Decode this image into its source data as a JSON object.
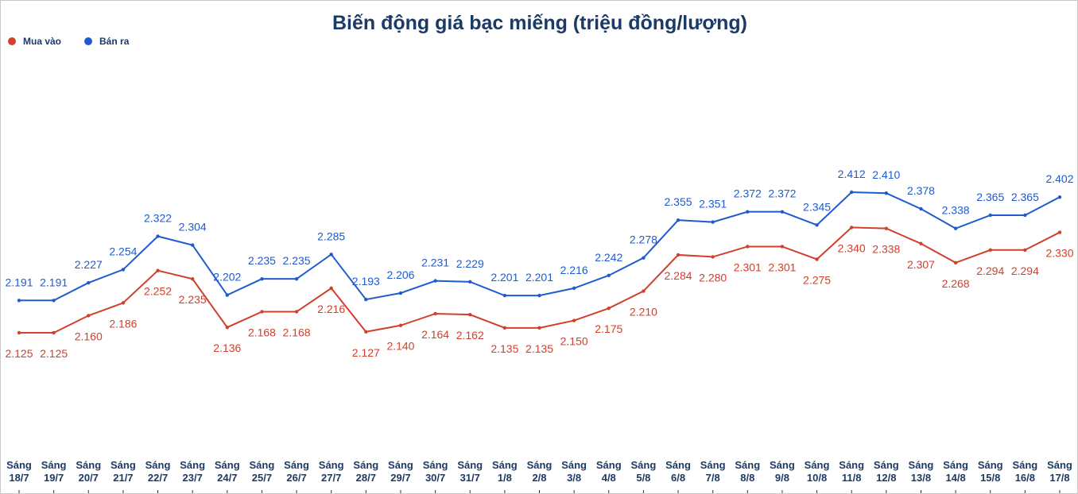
{
  "chart_data": {
    "type": "line",
    "title": "Biến động giá bạc miếng (triệu đồng/lượng)",
    "categories": [
      "Sáng 18/7",
      "Sáng 19/7",
      "Sáng 20/7",
      "Sáng 21/7",
      "Sáng 22/7",
      "Sáng 23/7",
      "Sáng 24/7",
      "Sáng 25/7",
      "Sáng 26/7",
      "Sáng 27/7",
      "Sáng 28/7",
      "Sáng 29/7",
      "Sáng 30/7",
      "Sáng 31/7",
      "Sáng 1/8",
      "Sáng 2/8",
      "Sáng 3/8",
      "Sáng 4/8",
      "Sáng 5/8",
      "Sáng 6/8",
      "Sáng 7/8",
      "Sáng 8/8",
      "Sáng 9/8",
      "Sáng 10/8",
      "Sáng 11/8",
      "Sáng 12/8",
      "Sáng 13/8",
      "Sáng 14/8",
      "Sáng 15/8",
      "Sáng 16/8",
      "Sáng 17/8"
    ],
    "legend": "top-left",
    "series": [
      {
        "name": "Mua vào",
        "color": "#d0402b",
        "values": [
          2.125,
          2.125,
          2.16,
          2.186,
          2.252,
          2.235,
          2.136,
          2.168,
          2.168,
          2.216,
          2.127,
          2.14,
          2.164,
          2.162,
          2.135,
          2.135,
          2.15,
          2.175,
          2.21,
          2.284,
          2.28,
          2.301,
          2.301,
          2.275,
          2.34,
          2.338,
          2.307,
          2.268,
          2.294,
          2.294,
          2.33
        ],
        "value_labels": [
          "2.125",
          "2.125",
          "2.160",
          "2.186",
          "2.252",
          "2.235",
          "2.136",
          "2.168",
          "2.168",
          "2.216",
          "2.127",
          "2.140",
          "2.164",
          "2.162",
          "2.135",
          "2.135",
          "2.150",
          "2.175",
          "2.210",
          "2.284",
          "2.280",
          "2.301",
          "2.301",
          "2.275",
          "2.340",
          "2.338",
          "2.307",
          "2.268",
          "2.294",
          "2.294",
          "2.330"
        ]
      },
      {
        "name": "Bán ra",
        "color": "#1f5bd0",
        "values": [
          2.191,
          2.191,
          2.227,
          2.254,
          2.322,
          2.304,
          2.202,
          2.235,
          2.235,
          2.285,
          2.193,
          2.206,
          2.231,
          2.229,
          2.201,
          2.201,
          2.216,
          2.242,
          2.278,
          2.355,
          2.351,
          2.372,
          2.372,
          2.345,
          2.412,
          2.41,
          2.378,
          2.338,
          2.365,
          2.365,
          2.402
        ],
        "value_labels": [
          "2.191",
          "2.191",
          "2.227",
          "2.254",
          "2.322",
          "2.304",
          "2.202",
          "2.235",
          "2.235",
          "2.285",
          "2.193",
          "2.206",
          "2.231",
          "2.229",
          "2.201",
          "2.201",
          "2.216",
          "2.242",
          "2.278",
          "2.355",
          "2.351",
          "2.372",
          "2.372",
          "2.345",
          "2.412",
          "2.410",
          "2.378",
          "2.338",
          "2.365",
          "2.365",
          "2.402"
        ]
      }
    ]
  }
}
